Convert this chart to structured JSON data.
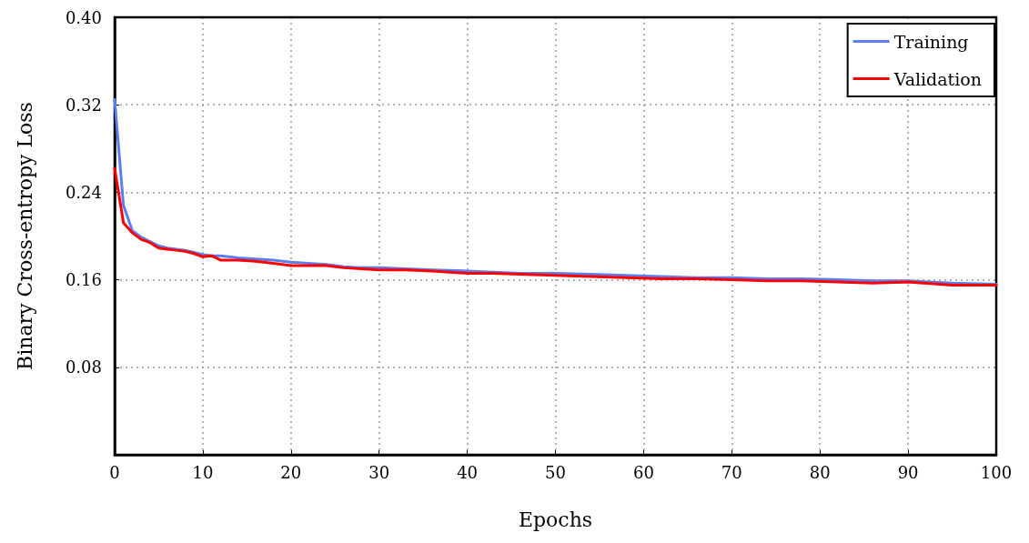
{
  "chart_data": {
    "type": "line",
    "xlabel": "Epochs",
    "ylabel": "Binary Cross-entropy Loss",
    "xlim": [
      0,
      100
    ],
    "xticks": [
      0,
      10,
      20,
      30,
      40,
      50,
      60,
      70,
      80,
      90,
      100
    ],
    "ylim": [
      0,
      0.4
    ],
    "yticks": [
      {
        "value": 0,
        "label": null
      },
      0.08,
      0.16,
      0.24,
      0.32,
      {
        "value": 0.4,
        "label": "0.40"
      }
    ],
    "grid": true,
    "legend": "top right",
    "marker": "none",
    "line_style": "solid",
    "x": [
      0,
      1,
      2,
      3,
      4,
      5,
      6,
      7,
      8,
      9,
      10,
      11,
      12,
      14,
      16,
      18,
      20,
      22,
      24,
      26,
      28,
      30,
      33,
      36,
      40,
      43,
      46,
      50,
      54,
      58,
      62,
      66,
      70,
      74,
      78,
      82,
      86,
      90,
      95,
      100
    ],
    "series": [
      {
        "name": "Training",
        "color": "#5b7ff0",
        "values": [
          0.325,
          0.228,
          0.205,
          0.199,
          0.195,
          0.191,
          0.189,
          0.188,
          0.187,
          0.185,
          0.183,
          0.182,
          0.182,
          0.18,
          0.179,
          0.178,
          0.176,
          0.175,
          0.174,
          0.172,
          0.171,
          0.171,
          0.17,
          0.169,
          0.168,
          0.167,
          0.166,
          0.166,
          0.165,
          0.164,
          0.163,
          0.162,
          0.162,
          0.161,
          0.161,
          0.16,
          0.159,
          0.159,
          0.157,
          0.156
        ]
      },
      {
        "name": "Validation",
        "color": "#ff0000",
        "values": [
          0.262,
          0.212,
          0.203,
          0.197,
          0.194,
          0.189,
          0.188,
          0.187,
          0.186,
          0.184,
          0.181,
          0.182,
          0.178,
          0.178,
          0.177,
          0.175,
          0.173,
          0.173,
          0.173,
          0.171,
          0.17,
          0.169,
          0.169,
          0.168,
          0.166,
          0.166,
          0.165,
          0.164,
          0.163,
          0.162,
          0.161,
          0.161,
          0.16,
          0.159,
          0.159,
          0.158,
          0.157,
          0.158,
          0.155,
          0.155
        ]
      }
    ]
  }
}
